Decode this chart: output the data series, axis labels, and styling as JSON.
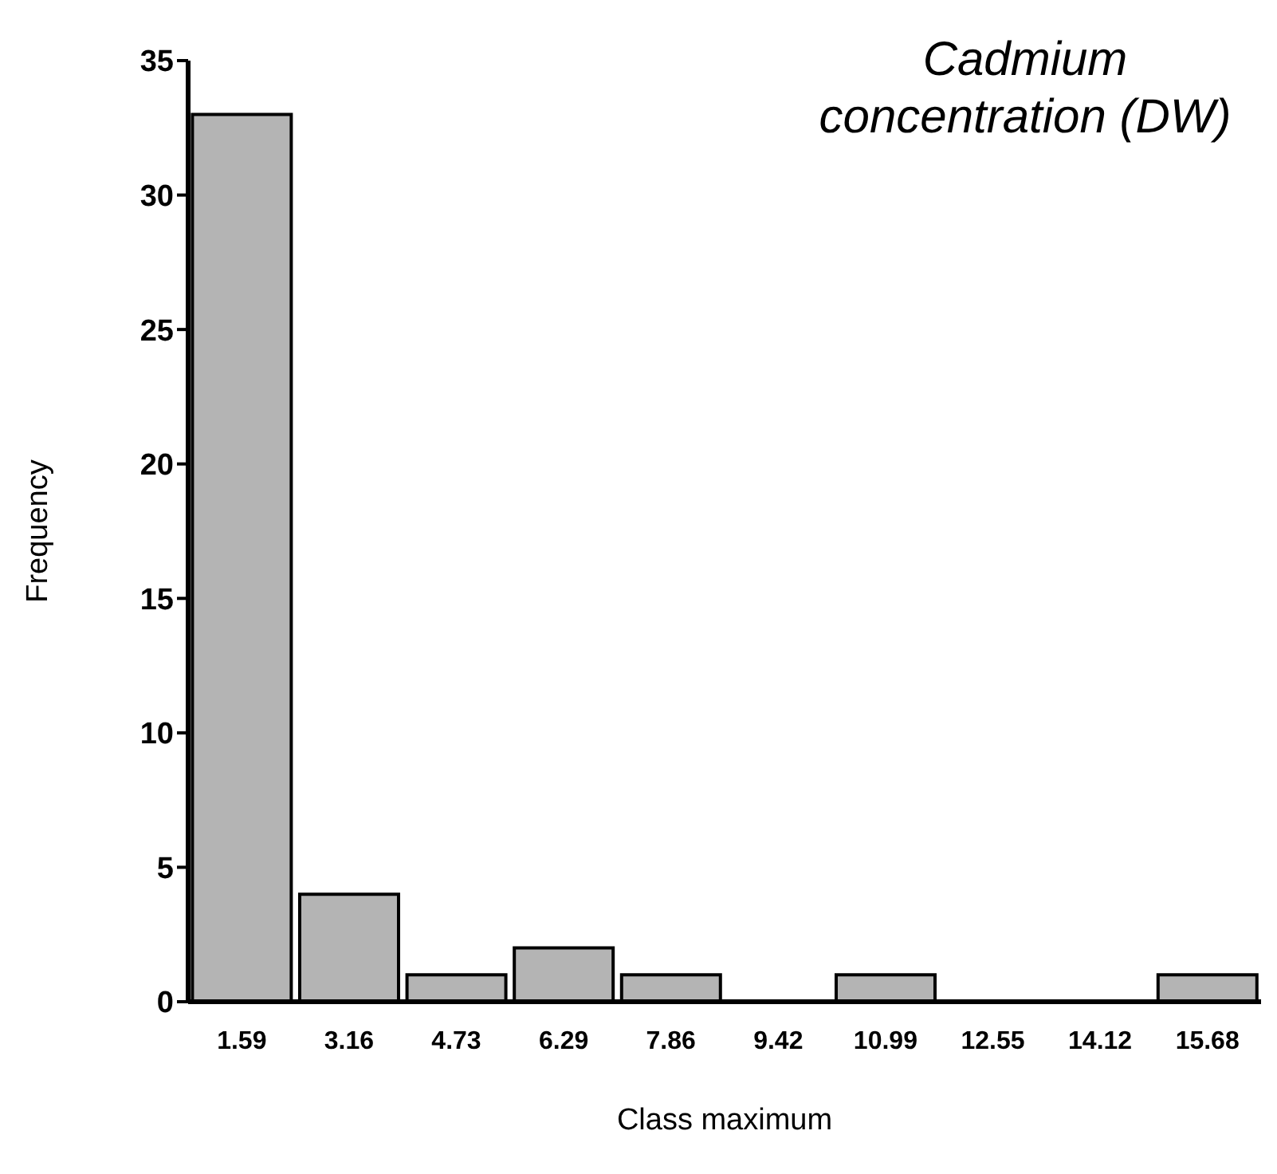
{
  "chart_data": {
    "type": "bar",
    "title": "Cadmium concentration (DW)",
    "xlabel": "Class maximum",
    "ylabel": "Frequency",
    "categories": [
      "1.59",
      "3.16",
      "4.73",
      "6.29",
      "7.86",
      "9.42",
      "10.99",
      "12.55",
      "14.12",
      "15.68"
    ],
    "values": [
      33,
      4,
      1,
      2,
      1,
      0,
      1,
      0,
      0,
      1
    ],
    "color": "#b4b4b4",
    "ylim": [
      0,
      35
    ],
    "yticks": [
      0,
      5,
      10,
      15,
      20,
      25,
      30,
      35
    ],
    "grid": false
  }
}
